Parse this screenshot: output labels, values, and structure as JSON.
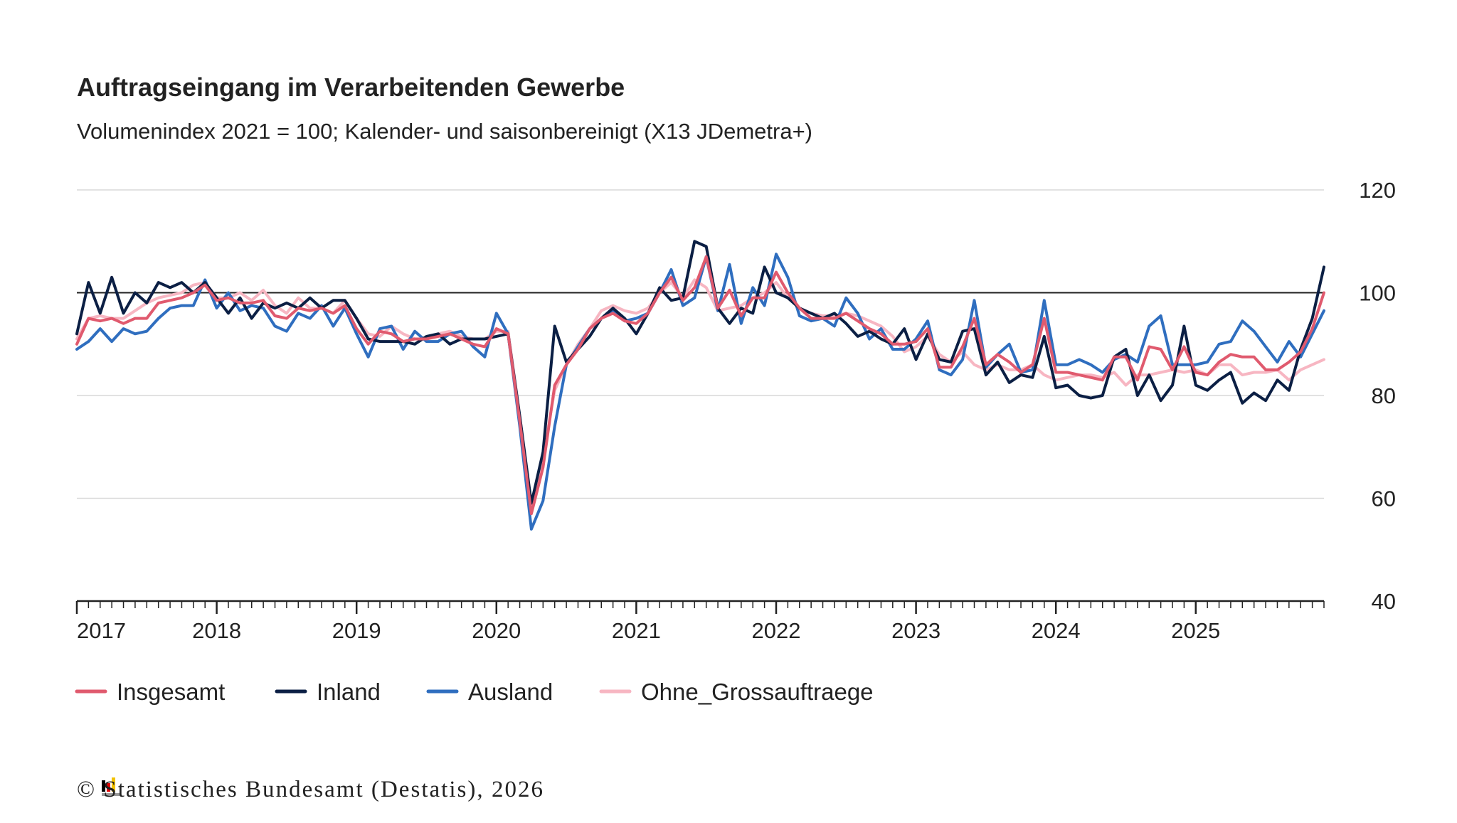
{
  "chart_data": {
    "type": "line",
    "title": "Auftragseingang im Verarbeitenden Gewerbe",
    "subtitle": "Volumenindex 2021 = 100; Kalender- und saisonbereinigt (X13 JDemetra+)",
    "footer": "© Statistisches Bundesamt (Destatis), 2026",
    "categories": [
      "2017",
      null,
      null,
      null,
      null,
      null,
      null,
      null,
      null,
      null,
      null,
      null,
      "2018",
      null,
      null,
      null,
      null,
      null,
      null,
      null,
      null,
      null,
      null,
      null,
      "2019",
      null,
      null,
      null,
      null,
      null,
      null,
      null,
      null,
      null,
      null,
      null,
      "2020",
      null,
      null,
      null,
      null,
      null,
      null,
      null,
      null,
      null,
      null,
      null,
      "2021",
      null,
      null,
      null,
      null,
      null,
      null,
      null,
      null,
      null,
      null,
      null,
      "2022",
      null,
      null,
      null,
      null,
      null,
      null,
      null,
      null,
      null,
      null,
      null,
      "2023",
      null,
      null,
      null,
      null,
      null,
      null,
      null,
      null,
      null,
      null,
      null,
      "2024",
      null,
      null,
      null,
      null,
      null,
      null,
      null,
      null,
      null,
      null,
      null,
      "2025",
      null,
      null,
      null,
      null,
      null,
      null,
      null,
      null,
      null,
      null,
      null
    ],
    "ylim": [
      40,
      120
    ],
    "yticks": [
      40,
      60,
      80,
      100,
      120
    ],
    "grid": true,
    "reference_line": 100,
    "legend": "bottom-left",
    "series": [
      {
        "name": "Insgesamt",
        "color": "#e05a6e",
        "values": [
          90,
          95,
          94.5,
          95,
          94,
          95,
          95,
          98,
          98.5,
          99,
          100,
          101.5,
          98.5,
          99,
          98,
          98,
          98.5,
          95.5,
          95,
          97,
          96.5,
          97,
          96,
          97.5,
          93,
          90,
          92.5,
          92,
          90.5,
          91,
          91,
          91.5,
          92,
          91,
          90,
          89.5,
          93,
          92,
          75,
          57,
          66,
          82,
          86,
          89,
          93,
          95,
          96,
          94.5,
          94,
          96,
          100,
          103,
          98.5,
          101,
          107,
          97,
          100.5,
          95.5,
          99,
          99,
          104,
          100,
          97,
          95,
          95,
          95,
          96,
          94.5,
          93,
          92,
          90,
          90,
          90.5,
          93,
          85.5,
          85.5,
          89.5,
          95,
          86,
          88,
          86.5,
          84.5,
          86,
          95,
          84.5,
          84.5,
          84,
          83.5,
          83,
          87.5,
          87.5,
          83,
          89.5,
          89,
          85,
          89.5,
          84.5,
          84,
          86.5,
          88,
          87.5,
          87.5,
          85,
          85,
          86.5,
          88.5,
          93,
          100
        ]
      },
      {
        "name": "Inland",
        "color": "#0b1f44",
        "values": [
          92,
          102,
          96,
          103,
          96,
          100,
          98,
          102,
          101,
          102,
          100,
          102,
          99,
          96,
          99,
          95,
          98,
          97,
          98,
          97,
          99,
          97,
          98.5,
          98.5,
          95,
          91,
          90.5,
          90.5,
          90.5,
          90,
          91.5,
          92,
          90,
          91,
          91,
          91,
          91.5,
          92,
          76,
          59,
          69,
          93.5,
          86.5,
          89,
          91.5,
          95,
          97,
          95,
          92,
          96,
          101,
          98.5,
          99,
          110,
          109,
          97,
          94,
          97,
          96,
          105,
          100,
          99,
          97,
          96,
          95,
          96,
          94,
          91.5,
          92.5,
          91,
          90,
          93,
          87,
          92,
          87,
          86.5,
          92.5,
          93,
          84,
          86.5,
          82.5,
          84,
          83.5,
          91.5,
          81.5,
          82,
          80,
          79.5,
          80,
          87.5,
          89,
          80,
          84,
          79,
          82,
          93.5,
          82,
          81,
          83,
          84.5,
          78.5,
          80.5,
          79,
          83,
          81,
          89,
          95,
          105
        ]
      },
      {
        "name": "Ausland",
        "color": "#2f6ebf",
        "values": [
          89,
          90.5,
          93,
          90.5,
          93,
          92,
          92.5,
          95,
          97,
          97.5,
          97.5,
          102.5,
          97,
          100,
          96.5,
          97.5,
          97,
          93.5,
          92.5,
          96,
          95,
          97.5,
          93.5,
          97,
          92,
          87.5,
          93,
          93.5,
          89,
          92.5,
          90.5,
          90.5,
          92,
          92.5,
          89.5,
          87.5,
          96,
          92,
          74,
          54,
          59.5,
          74,
          86,
          89.5,
          93,
          95,
          96.5,
          94.5,
          95,
          96,
          100,
          104.5,
          97.5,
          99,
          107,
          96.5,
          105.5,
          94,
          101,
          97.5,
          107.5,
          103,
          95.5,
          94.5,
          95,
          93.5,
          99,
          96,
          91,
          93,
          89,
          89,
          91,
          94.5,
          85,
          84,
          87,
          98.5,
          85.5,
          88,
          90,
          84.5,
          85,
          98.5,
          86,
          86,
          87,
          86,
          84.5,
          87,
          88,
          86.5,
          93.5,
          95.5,
          86,
          86,
          86,
          86.5,
          90,
          90.5,
          94.5,
          92.5,
          89.5,
          86.5,
          90.5,
          87.5,
          92,
          96.5
        ]
      },
      {
        "name": "Ohne_Grossauftraege",
        "color": "#f7b6c2",
        "values": [
          91,
          95,
          95.5,
          95,
          95,
          96.5,
          98,
          99,
          99.5,
          100,
          101.5,
          102,
          99,
          99,
          100,
          98.5,
          100.5,
          97.5,
          96,
          99,
          97,
          97,
          96,
          98.5,
          95,
          92,
          91.5,
          93.5,
          92,
          91,
          91,
          92,
          92.5,
          91.5,
          91,
          91,
          92.5,
          92.5,
          76,
          58,
          68,
          81,
          86,
          90,
          93,
          96.5,
          97.5,
          96.5,
          96,
          97,
          100,
          102,
          99,
          102.5,
          101,
          96.5,
          97,
          97.5,
          99,
          100,
          102,
          99,
          97,
          96,
          95.5,
          95.5,
          96,
          95.5,
          94.5,
          93.5,
          91.5,
          88.5,
          89.5,
          91.5,
          88,
          86.5,
          88.5,
          86,
          85,
          86,
          85,
          85,
          86,
          84,
          83,
          83.5,
          84,
          84,
          83.5,
          84.5,
          82,
          84,
          84,
          84.5,
          85,
          84.5,
          85,
          84,
          86,
          86,
          84,
          84.5,
          84.5,
          85,
          83,
          85,
          86,
          87
        ]
      }
    ]
  }
}
